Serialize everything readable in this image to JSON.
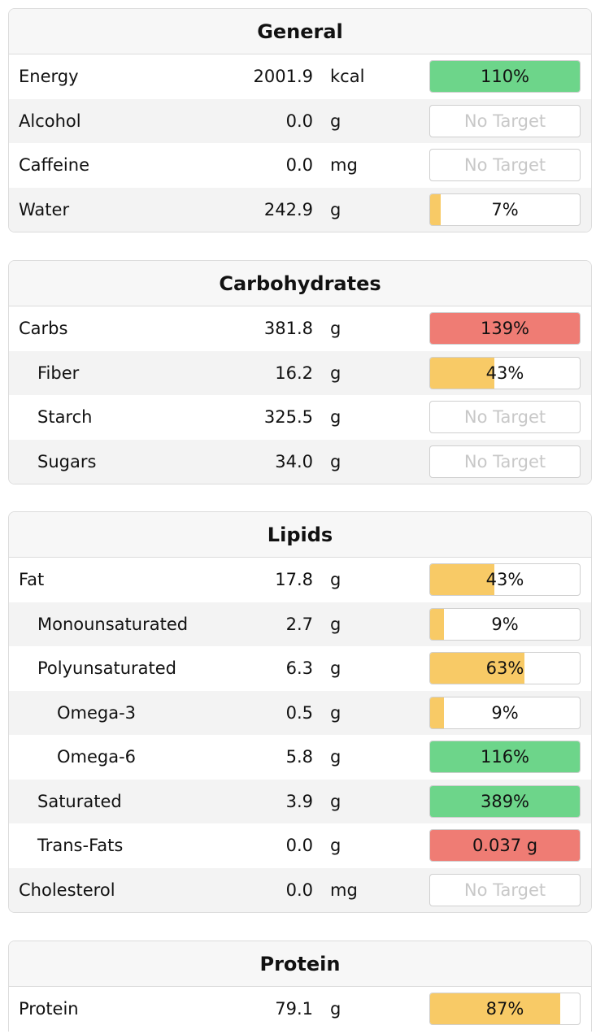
{
  "colors": {
    "green": "#6dd58a",
    "yellow": "#f8ca66",
    "red": "#ef7c74"
  },
  "sections": [
    {
      "title": "General",
      "rows": [
        {
          "name": "Energy",
          "indent": 0,
          "amount": "2001.9",
          "unit": "kcal",
          "target": "110%",
          "fill": 1.0,
          "color": "green"
        },
        {
          "name": "Alcohol",
          "indent": 0,
          "amount": "0.0",
          "unit": "g",
          "target": "No Target",
          "fill": 0,
          "color": null
        },
        {
          "name": "Caffeine",
          "indent": 0,
          "amount": "0.0",
          "unit": "mg",
          "target": "No Target",
          "fill": 0,
          "color": null
        },
        {
          "name": "Water",
          "indent": 0,
          "amount": "242.9",
          "unit": "g",
          "target": "7%",
          "fill": 0.07,
          "color": "yellow"
        }
      ]
    },
    {
      "title": "Carbohydrates",
      "rows": [
        {
          "name": "Carbs",
          "indent": 0,
          "amount": "381.8",
          "unit": "g",
          "target": "139%",
          "fill": 1.0,
          "color": "red"
        },
        {
          "name": "Fiber",
          "indent": 1,
          "amount": "16.2",
          "unit": "g",
          "target": "43%",
          "fill": 0.43,
          "color": "yellow"
        },
        {
          "name": "Starch",
          "indent": 1,
          "amount": "325.5",
          "unit": "g",
          "target": "No Target",
          "fill": 0,
          "color": null
        },
        {
          "name": "Sugars",
          "indent": 1,
          "amount": "34.0",
          "unit": "g",
          "target": "No Target",
          "fill": 0,
          "color": null
        }
      ]
    },
    {
      "title": "Lipids",
      "rows": [
        {
          "name": "Fat",
          "indent": 0,
          "amount": "17.8",
          "unit": "g",
          "target": "43%",
          "fill": 0.43,
          "color": "yellow"
        },
        {
          "name": "Monounsaturated",
          "indent": 1,
          "amount": "2.7",
          "unit": "g",
          "target": "9%",
          "fill": 0.09,
          "color": "yellow"
        },
        {
          "name": "Polyunsaturated",
          "indent": 1,
          "amount": "6.3",
          "unit": "g",
          "target": "63%",
          "fill": 0.63,
          "color": "yellow"
        },
        {
          "name": "Omega-3",
          "indent": 2,
          "amount": "0.5",
          "unit": "g",
          "target": "9%",
          "fill": 0.09,
          "color": "yellow"
        },
        {
          "name": "Omega-6",
          "indent": 2,
          "amount": "5.8",
          "unit": "g",
          "target": "116%",
          "fill": 1.0,
          "color": "green"
        },
        {
          "name": "Saturated",
          "indent": 1,
          "amount": "3.9",
          "unit": "g",
          "target": "389%",
          "fill": 1.0,
          "color": "green"
        },
        {
          "name": "Trans-Fats",
          "indent": 1,
          "amount": "0.0",
          "unit": "g",
          "target": "0.037 g",
          "fill": 1.0,
          "color": "red"
        },
        {
          "name": "Cholesterol",
          "indent": 0,
          "amount": "0.0",
          "unit": "mg",
          "target": "No Target",
          "fill": 0,
          "color": null
        }
      ]
    },
    {
      "title": "Protein",
      "rows": [
        {
          "name": "Protein",
          "indent": 0,
          "amount": "79.1",
          "unit": "g",
          "target": "87%",
          "fill": 0.87,
          "color": "yellow"
        }
      ]
    }
  ]
}
